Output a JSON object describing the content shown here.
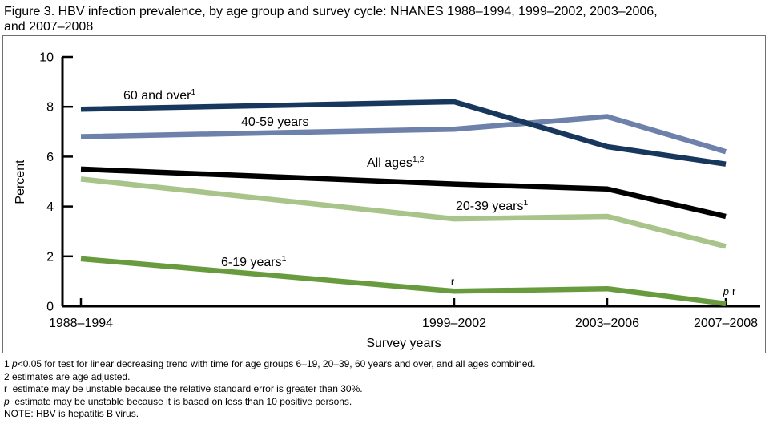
{
  "title": {
    "line1": "Figure 3. HBV infection prevalence, by age group and survey cycle: NHANES 1988–1994, 1999–2002, 2003–2006,",
    "line2": "and 2007–2008"
  },
  "chart_data": {
    "type": "line",
    "title": "Figure 3. HBV infection prevalence, by age group and survey cycle: NHANES 1988–1994, 1999–2002, 2003–2006, and 2007–2008",
    "xlabel": "Survey years",
    "ylabel": "Percent",
    "ylim": [
      0,
      10
    ],
    "yticks": [
      0,
      2,
      4,
      6,
      8,
      10
    ],
    "grid": false,
    "legend_position": "inline-labels",
    "categories": [
      "1988–1994",
      "1999–2002",
      "2003–2006",
      "2007–2008"
    ],
    "series": [
      {
        "name": "60 and over",
        "sup": "1",
        "color": "#17375d",
        "values": [
          7.9,
          8.2,
          6.4,
          5.7
        ]
      },
      {
        "name": "40-59 years",
        "sup": "",
        "color": "#6d81aa",
        "values": [
          6.8,
          7.1,
          7.6,
          6.2
        ]
      },
      {
        "name": "All ages",
        "sup": "1,2",
        "color": "#000000",
        "values": [
          5.5,
          4.9,
          4.7,
          3.6
        ]
      },
      {
        "name": "20-39 years",
        "sup": "1",
        "color": "#a8c48a",
        "values": [
          5.1,
          3.5,
          3.6,
          2.4
        ]
      },
      {
        "name": "6-19 years",
        "sup": "1",
        "color": "#689b3d",
        "values": [
          1.9,
          0.6,
          0.7,
          0.1
        ]
      }
    ],
    "annotations": [
      {
        "text": "r",
        "italic": false,
        "series": "6-19 years",
        "category": "1999–2002"
      },
      {
        "text": "p",
        "italic": true,
        "series": "6-19 years",
        "category": "2007–2008"
      },
      {
        "text": "r",
        "italic": false,
        "series": "6-19 years",
        "category": "2007–2008"
      }
    ]
  },
  "footnotes": [
    {
      "pre": "1 ",
      "italic": "p",
      "post": "<0.05 for test for linear decreasing trend with time for age groups 6–19, 20–39, 60 years and over, and all ages combined."
    },
    {
      "pre": "2 estimates are age adjusted.",
      "italic": "",
      "post": ""
    },
    {
      "pre": "r  estimate may be unstable because the relative standard error is greater than 30%.",
      "italic": "",
      "post": ""
    },
    {
      "pre": "",
      "italic": "p",
      "post": "  estimate may be unstable because it is based on less than 10 positive persons."
    },
    {
      "pre": "NOTE: HBV is hepatitis B virus.",
      "italic": "",
      "post": ""
    }
  ]
}
